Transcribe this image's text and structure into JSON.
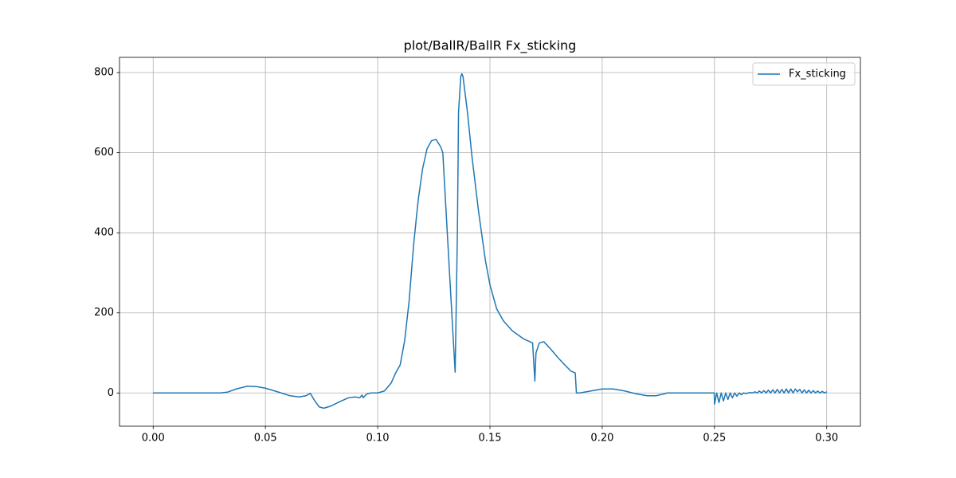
{
  "chart_data": {
    "type": "line",
    "title": "plot/BallR/BallR Fx_sticking",
    "x": [
      0,
      0.03,
      0.033,
      0.037,
      0.042,
      0.046,
      0.05,
      0.053,
      0.057,
      0.061,
      0.065,
      0.068,
      0.07,
      0.072,
      0.074,
      0.076,
      0.079,
      0.083,
      0.087,
      0.09,
      0.092,
      0.093,
      0.0935,
      0.095,
      0.0955,
      0.097,
      0.1,
      0.103,
      0.106,
      0.108,
      0.11,
      0.112,
      0.114,
      0.116,
      0.118,
      0.12,
      0.122,
      0.124,
      0.126,
      0.128,
      0.129,
      0.131,
      0.133,
      0.1345,
      0.1355,
      0.136,
      0.137,
      0.1375,
      0.138,
      0.14,
      0.142,
      0.145,
      0.148,
      0.15,
      0.153,
      0.156,
      0.16,
      0.165,
      0.169,
      0.17,
      0.1705,
      0.172,
      0.174,
      0.177,
      0.18,
      0.183,
      0.186,
      0.188,
      0.1885,
      0.19,
      0.195,
      0.2,
      0.205,
      0.21,
      0.215,
      0.22,
      0.224,
      0.227,
      0.229,
      0.2499,
      0.25,
      0.251,
      0.252,
      0.253,
      0.254,
      0.255,
      0.256,
      0.257,
      0.258,
      0.259,
      0.26,
      0.261,
      0.262,
      0.263,
      0.264,
      0.265,
      0.266,
      0.267,
      0.268,
      0.269,
      0.27,
      0.271,
      0.272,
      0.273,
      0.274,
      0.275,
      0.276,
      0.277,
      0.278,
      0.279,
      0.28,
      0.281,
      0.282,
      0.283,
      0.284,
      0.285,
      0.286,
      0.287,
      0.288,
      0.289,
      0.29,
      0.291,
      0.292,
      0.293,
      0.294,
      0.295,
      0.296,
      0.297,
      0.298,
      0.299,
      0.3
    ],
    "series": [
      {
        "name": "Fx_sticking",
        "color": "#1f77b4",
        "values": [
          0,
          0,
          2,
          10,
          17,
          16,
          12,
          7,
          0,
          -7,
          -10,
          -7,
          -1,
          -20,
          -35,
          -38,
          -33,
          -22,
          -12,
          -10,
          -12,
          -5,
          -12,
          -3,
          -2,
          0,
          0,
          5,
          25,
          50,
          70,
          130,
          230,
          370,
          480,
          560,
          610,
          630,
          633,
          615,
          600,
          400,
          200,
          52,
          400,
          700,
          790,
          797,
          790,
          700,
          590,
          450,
          330,
          270,
          210,
          180,
          155,
          135,
          125,
          30,
          100,
          125,
          128,
          110,
          90,
          72,
          55,
          50,
          0,
          0,
          5,
          10,
          10,
          5,
          -2,
          -7,
          -7,
          -3,
          0,
          0,
          -28,
          0,
          -24,
          0,
          -20,
          0,
          -16,
          0,
          -12,
          0,
          -8,
          0,
          -4.5,
          0,
          -1.5,
          0,
          1,
          0,
          3,
          0,
          5,
          0,
          6,
          0,
          7,
          0,
          8,
          0,
          9,
          0,
          9,
          0,
          10,
          0,
          10,
          0,
          10,
          3,
          9,
          0,
          8,
          0,
          7,
          0,
          6,
          0,
          5,
          0,
          4,
          0,
          3
        ]
      }
    ],
    "xlim": [
      -0.015,
      0.315
    ],
    "ylim": [
      -83,
      838
    ],
    "xticks": [
      {
        "value": 0,
        "label": "0.00"
      },
      {
        "value": 0.05,
        "label": "0.05"
      },
      {
        "value": 0.1,
        "label": "0.10"
      },
      {
        "value": 0.15,
        "label": "0.15"
      },
      {
        "value": 0.2,
        "label": "0.20"
      },
      {
        "value": 0.25,
        "label": "0.25"
      },
      {
        "value": 0.3,
        "label": "0.30"
      }
    ],
    "yticks": [
      0,
      200,
      400,
      600,
      800
    ],
    "grid": true,
    "legend": "upper-right"
  }
}
